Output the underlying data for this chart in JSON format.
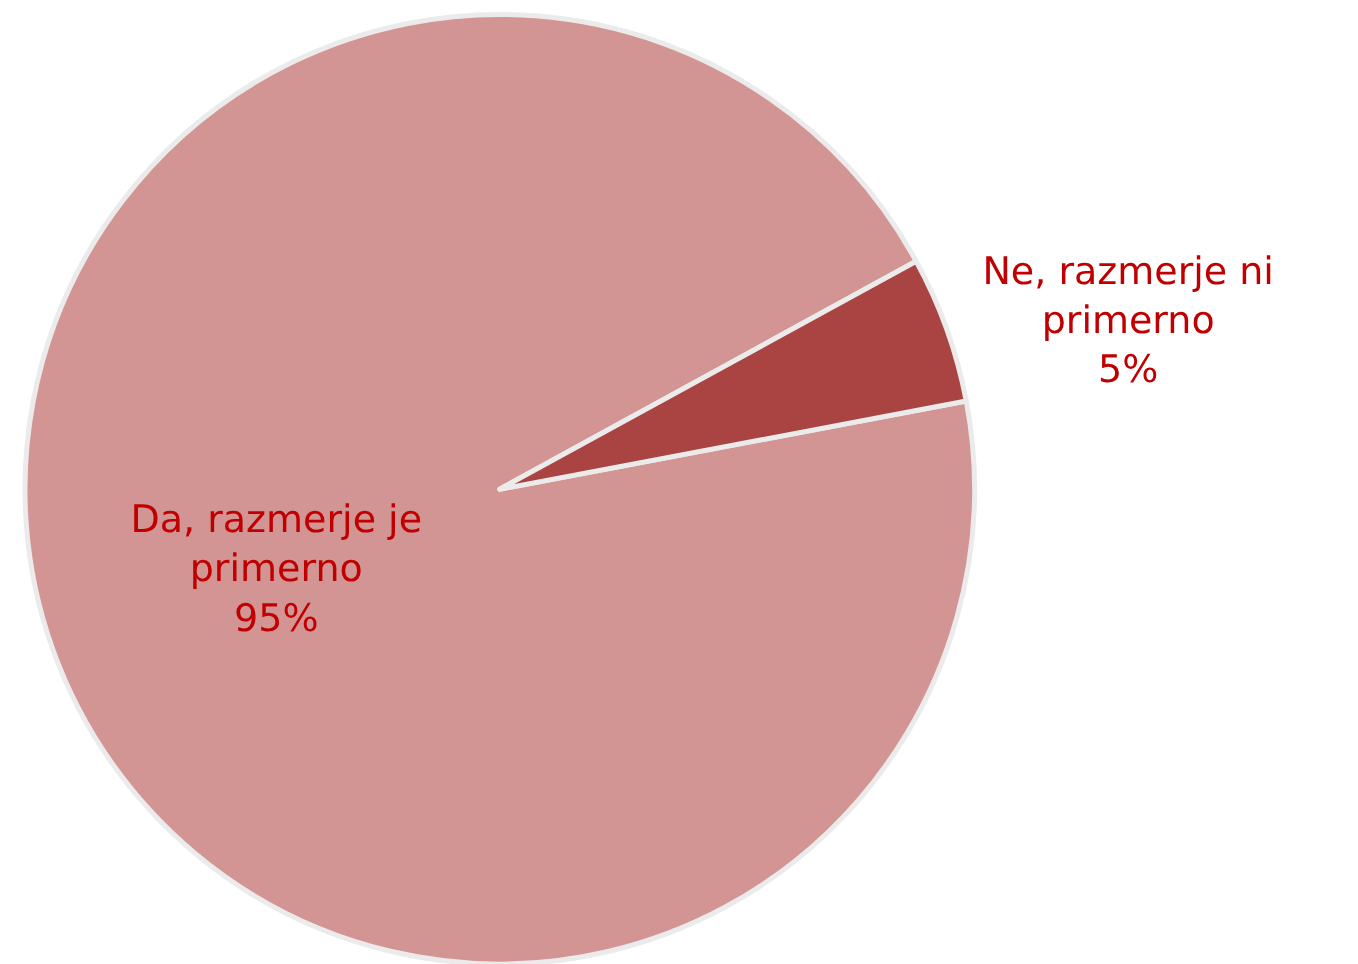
{
  "chart_data": {
    "type": "pie",
    "categories": [
      "Da, razmerje je primerno",
      "Ne, razmerje ni primerno"
    ],
    "values": [
      95,
      5
    ],
    "colors": [
      "#d39494",
      "#a94442"
    ],
    "value_labels": [
      "95%",
      "5%"
    ],
    "legend": false
  }
}
